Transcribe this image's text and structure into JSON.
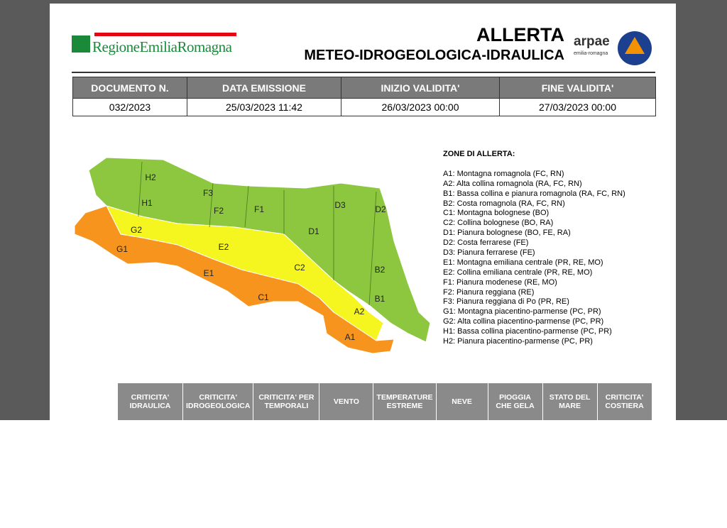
{
  "header": {
    "logo": "RegioneEmiliaRomagna",
    "title": "ALLERTA",
    "subtitle": "METEO-IDROGEOLOGICA-IDRAULICA",
    "arpae": "arpae",
    "arpae_sub": "emilia-romagna"
  },
  "info_table": {
    "headers": [
      "DOCUMENTO N.",
      "DATA EMISSIONE",
      "INIZIO VALIDITA'",
      "FINE VALIDITA'"
    ],
    "row": [
      "032/2023",
      "25/03/2023 11:42",
      "26/03/2023 00:00",
      "27/03/2023 00:00"
    ]
  },
  "map": {
    "zones": [
      "H2",
      "H1",
      "F3",
      "F2",
      "F1",
      "D3",
      "D2",
      "D1",
      "G2",
      "E2",
      "G1",
      "C2",
      "B2",
      "E1",
      "C1",
      "B1",
      "A2",
      "A1"
    ]
  },
  "legend": {
    "title": "ZONE DI ALLERTA:",
    "items": [
      "A1: Montagna romagnola (FC, RN)",
      "A2: Alta collina romagnola (RA, FC, RN)",
      "B1: Bassa collina e pianura romagnola (RA, FC, RN)",
      "B2: Costa romagnola (RA, FC, RN)",
      "C1: Montagna bolognese (BO)",
      "C2: Collina bolognese (BO, RA)",
      "D1: Pianura bolognese (BO, FE, RA)",
      "D2: Costa ferrarese (FE)",
      "D3: Pianura ferrarese (FE)",
      "E1: Montagna emiliana centrale (PR, RE, MO)",
      "E2: Collina emiliana centrale (PR, RE, MO)",
      "F1: Pianura modenese (RE, MO)",
      "F2: Pianura reggiana (RE)",
      "F3: Pianura reggiana di Po (PR, RE)",
      "G1: Montagna piacentino-parmense (PC, PR)",
      "G2: Alta collina piacentino-parmense (PC, PR)",
      "H1: Bassa collina piacentino-parmense (PC, PR)",
      "H2: Pianura piacentino-parmense (PC, PR)"
    ]
  },
  "risk_table": {
    "headers": [
      "CRITICITA' IDRAULICA",
      "CRITICITA' IDROGEOLOGICA",
      "CRITICITA' PER TEMPORALI",
      "VENTO",
      "TEMPERATURE ESTREME",
      "NEVE",
      "PIOGGIA CHE GELA",
      "STATO DEL MARE",
      "CRITICITA' COSTIERA"
    ]
  }
}
